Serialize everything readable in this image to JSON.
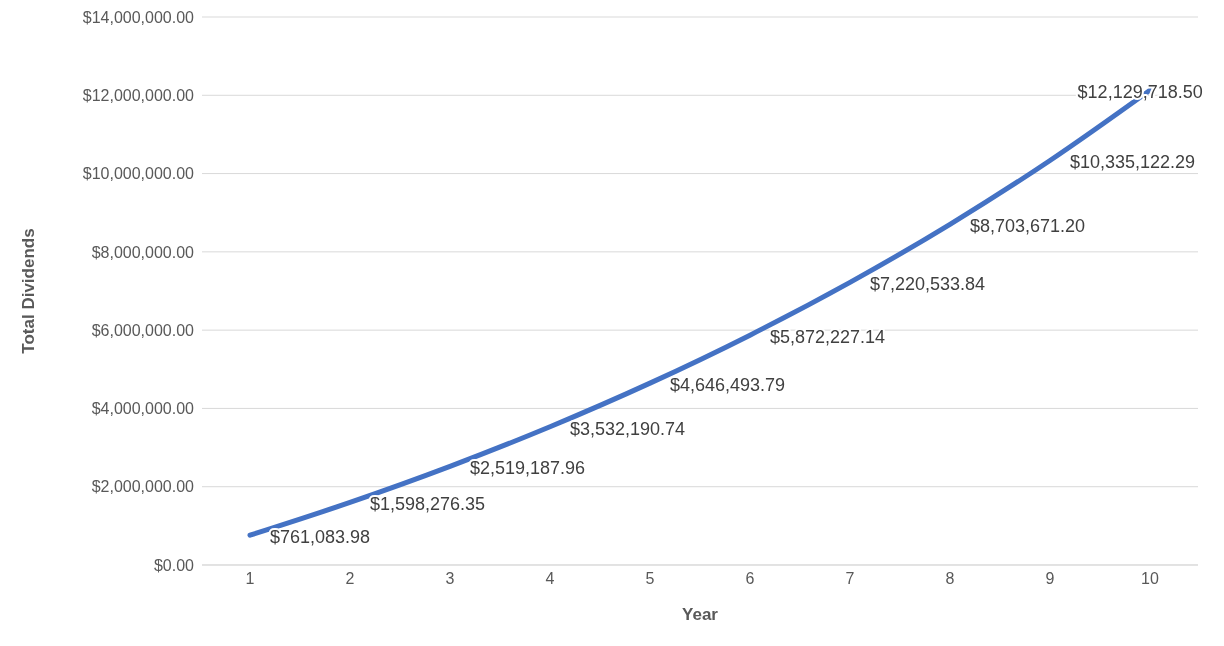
{
  "chart_data": {
    "type": "line",
    "xlabel": "Year",
    "ylabel": "Total Dividends",
    "categories": [
      "1",
      "2",
      "3",
      "4",
      "5",
      "6",
      "7",
      "8",
      "9",
      "10"
    ],
    "series": [
      {
        "color": "#4472c4",
        "values": [
          761083.98,
          1598276.35,
          2519187.96,
          3532190.74,
          4646493.79,
          5872227.14,
          7220533.84,
          8703671.2,
          10335122.29,
          12129718.5
        ],
        "value_labels": [
          "$761,083.98",
          "$1,598,276.35",
          "$2,519,187.96",
          "$3,532,190.74",
          "$4,646,493.79",
          "$5,872,227.14",
          "$7,220,533.84",
          "$8,703,671.20",
          "$10,335,122.29",
          "$12,129,718.50"
        ]
      }
    ],
    "ylim": [
      0,
      14000000
    ],
    "yticks": [
      {
        "value": 0,
        "label": "$0.00"
      },
      {
        "value": 2000000,
        "label": "$2,000,000.00"
      },
      {
        "value": 4000000,
        "label": "$4,000,000.00"
      },
      {
        "value": 6000000,
        "label": "$6,000,000.00"
      },
      {
        "value": 8000000,
        "label": "$8,000,000.00"
      },
      {
        "value": 10000000,
        "label": "$10,000,000.00"
      },
      {
        "value": 12000000,
        "label": "$12,000,000.00"
      },
      {
        "value": 14000000,
        "label": "$14,000,000.00"
      }
    ],
    "grid": "y",
    "marker": "none",
    "line_style": "solid"
  }
}
